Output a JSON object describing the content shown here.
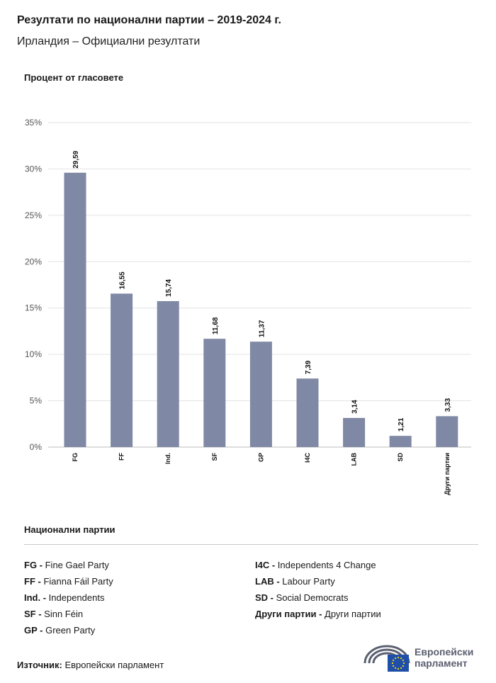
{
  "header": {
    "title": "Резултати по национални партии – 2019-2024 г.",
    "subtitle": "Ирландия – Официални резултати"
  },
  "chart_data": {
    "type": "bar",
    "ylabel": "Процент от гласовете",
    "categories": [
      "FG",
      "FF",
      "Ind.",
      "SF",
      "GP",
      "I4C",
      "LAB",
      "SD",
      "Други партии"
    ],
    "values": [
      29.59,
      16.55,
      15.74,
      11.68,
      11.37,
      7.39,
      3.14,
      1.21,
      3.33
    ],
    "value_labels": [
      "29,59",
      "16,55",
      "15,74",
      "11,68",
      "11,37",
      "7,39",
      "3,14",
      "1,21",
      "3,33"
    ],
    "yticks": [
      "0%",
      "5%",
      "10%",
      "15%",
      "20%",
      "25%",
      "30%",
      "35%"
    ],
    "ylim": [
      0,
      35
    ],
    "grid": true,
    "bar_color": "#7f88a4"
  },
  "legend": {
    "title": "Национални партии",
    "left": [
      {
        "abbr": "FG -",
        "name": "Fine Gael Party"
      },
      {
        "abbr": "FF -",
        "name": "Fianna Fáil Party"
      },
      {
        "abbr": "Ind. -",
        "name": "Independents"
      },
      {
        "abbr": "SF -",
        "name": "Sinn Féin"
      },
      {
        "abbr": "GP -",
        "name": "Green Party"
      }
    ],
    "right": [
      {
        "abbr": "I4C -",
        "name": "Independents 4 Change"
      },
      {
        "abbr": "LAB -",
        "name": "Labour Party"
      },
      {
        "abbr": "SD -",
        "name": "Social Democrats"
      },
      {
        "abbr": "Други партии -",
        "name": "Други партии"
      }
    ]
  },
  "footer": {
    "source_label": "Източник:",
    "source_text": "Европейски парламент",
    "logo_line1": "Европейски",
    "logo_line2": "парламент",
    "logo_color": "#1f4fa8"
  }
}
